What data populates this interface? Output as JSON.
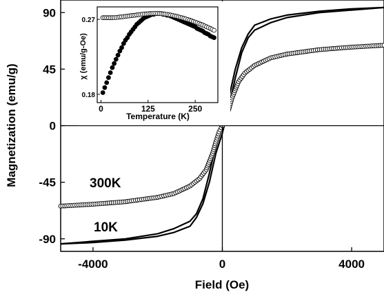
{
  "chart_data": [
    {
      "type": "line",
      "title": "",
      "xlabel": "Field (Oe)",
      "ylabel": "Magnetization (emu/g)",
      "xlim": [
        -5000,
        5000
      ],
      "ylim": [
        -100,
        100
      ],
      "xticks": [
        -4000,
        0,
        4000
      ],
      "yticks": [
        -90,
        -45,
        0,
        45,
        90
      ],
      "grid": false,
      "zero_lines": true,
      "series": [
        {
          "name": "10K",
          "style": "line",
          "color": "#000000",
          "ascending": {
            "x": [
              -5000,
              -4000,
              -3000,
              -2000,
              -1500,
              -1000,
              -800,
              -600,
              -400,
              -200,
              0,
              200,
              400,
              600,
              800,
              1000,
              1500,
              2000,
              3000,
              4000,
              5000
            ],
            "y": [
              -94,
              -93,
              -91,
              -88,
              -85,
              -80,
              -73,
              -62,
              -45,
              -22,
              -6,
              15,
              38,
              58,
              70,
              76,
              82,
              86,
              90,
              92,
              94
            ]
          },
          "descending": {
            "x": [
              5000,
              4000,
              3000,
              2000,
              1500,
              1000,
              800,
              600,
              400,
              200,
              0,
              -200,
              -400,
              -600,
              -800,
              -1000,
              -1500,
              -2000,
              -3000,
              -4000,
              -5000
            ],
            "y": [
              94,
              93,
              91,
              88,
              85,
              80,
              73,
              62,
              45,
              22,
              6,
              -15,
              -38,
              -58,
              -70,
              -76,
              -82,
              -86,
              -90,
              -92,
              -94
            ]
          }
        },
        {
          "name": "300K",
          "style": "open-circles",
          "color": "#000000",
          "x": [
            -5000,
            -4000,
            -3000,
            -2000,
            -1500,
            -1000,
            -700,
            -500,
            -300,
            -200,
            -100,
            0,
            100,
            200,
            300,
            500,
            700,
            1000,
            1500,
            2000,
            3000,
            4000,
            5000
          ],
          "y": [
            -64,
            -62.5,
            -60.5,
            -57,
            -54,
            -48,
            -42,
            -35,
            -22,
            -13,
            -5,
            0,
            5,
            13,
            22,
            35,
            42,
            48,
            54,
            57,
            60.5,
            62.5,
            64
          ]
        }
      ],
      "annotations": [
        "300K",
        "10K"
      ]
    },
    {
      "type": "scatter",
      "title": "",
      "xlabel": "Temperature (K)",
      "ylabel": "χ (emu/g-Oe)",
      "xlim": [
        -10,
        310
      ],
      "ylim": [
        0.17,
        0.285
      ],
      "xticks": [
        0,
        125,
        250
      ],
      "yticks": [
        0.18,
        0.27
      ],
      "series": [
        {
          "name": "",
          "marker": "filled-circle",
          "x": [
            5,
            10,
            15,
            20,
            25,
            30,
            35,
            40,
            45,
            50,
            55,
            60,
            65,
            70,
            75,
            80,
            85,
            90,
            95,
            100,
            105,
            110,
            115,
            120,
            125,
            130,
            135,
            140,
            145,
            150,
            155,
            160,
            165,
            170,
            175,
            180,
            185,
            190,
            195,
            200,
            205,
            210,
            215,
            220,
            225,
            230,
            235,
            240,
            245,
            250,
            255,
            260,
            265,
            270,
            275,
            280,
            285,
            290,
            295,
            300
          ],
          "y": [
            0.182,
            0.188,
            0.194,
            0.2,
            0.206,
            0.212,
            0.217,
            0.222,
            0.227,
            0.232,
            0.236,
            0.241,
            0.245,
            0.248,
            0.252,
            0.255,
            0.258,
            0.261,
            0.264,
            0.266,
            0.268,
            0.27,
            0.272,
            0.273,
            0.274,
            0.275,
            0.276,
            0.276,
            0.277,
            0.277,
            0.277,
            0.277,
            0.276,
            0.276,
            0.275,
            0.275,
            0.274,
            0.273,
            0.272,
            0.271,
            0.27,
            0.269,
            0.268,
            0.267,
            0.266,
            0.265,
            0.264,
            0.263,
            0.262,
            0.261,
            0.259,
            0.258,
            0.257,
            0.256,
            0.254,
            0.253,
            0.252,
            0.25,
            0.249,
            0.248
          ]
        },
        {
          "name": "",
          "marker": "open-circle",
          "x": [
            5,
            10,
            15,
            20,
            25,
            30,
            35,
            40,
            45,
            50,
            55,
            60,
            65,
            70,
            75,
            80,
            85,
            90,
            95,
            100,
            105,
            110,
            115,
            120,
            125,
            130,
            135,
            140,
            145,
            150,
            155,
            160,
            165,
            170,
            175,
            180,
            185,
            190,
            195,
            200,
            205,
            210,
            215,
            220,
            225,
            230,
            235,
            240,
            245,
            250,
            255,
            260,
            265,
            270,
            275,
            280,
            285,
            290,
            295,
            300
          ],
          "y": [
            0.272,
            0.272,
            0.272,
            0.272,
            0.272,
            0.272,
            0.2721,
            0.2723,
            0.2725,
            0.2728,
            0.273,
            0.2733,
            0.2736,
            0.2739,
            0.2742,
            0.2745,
            0.2748,
            0.275,
            0.2753,
            0.2756,
            0.2759,
            0.2762,
            0.2764,
            0.2766,
            0.2768,
            0.277,
            0.277,
            0.2771,
            0.2771,
            0.2771,
            0.277,
            0.2768,
            0.2766,
            0.2763,
            0.276,
            0.2756,
            0.2752,
            0.2747,
            0.2742,
            0.2737,
            0.2731,
            0.2725,
            0.2719,
            0.2712,
            0.2705,
            0.2698,
            0.2691,
            0.2683,
            0.2675,
            0.2667,
            0.2659,
            0.265,
            0.2641,
            0.2632,
            0.2622,
            0.2612,
            0.2602,
            0.2591,
            0.258,
            0.2569
          ]
        }
      ]
    }
  ]
}
